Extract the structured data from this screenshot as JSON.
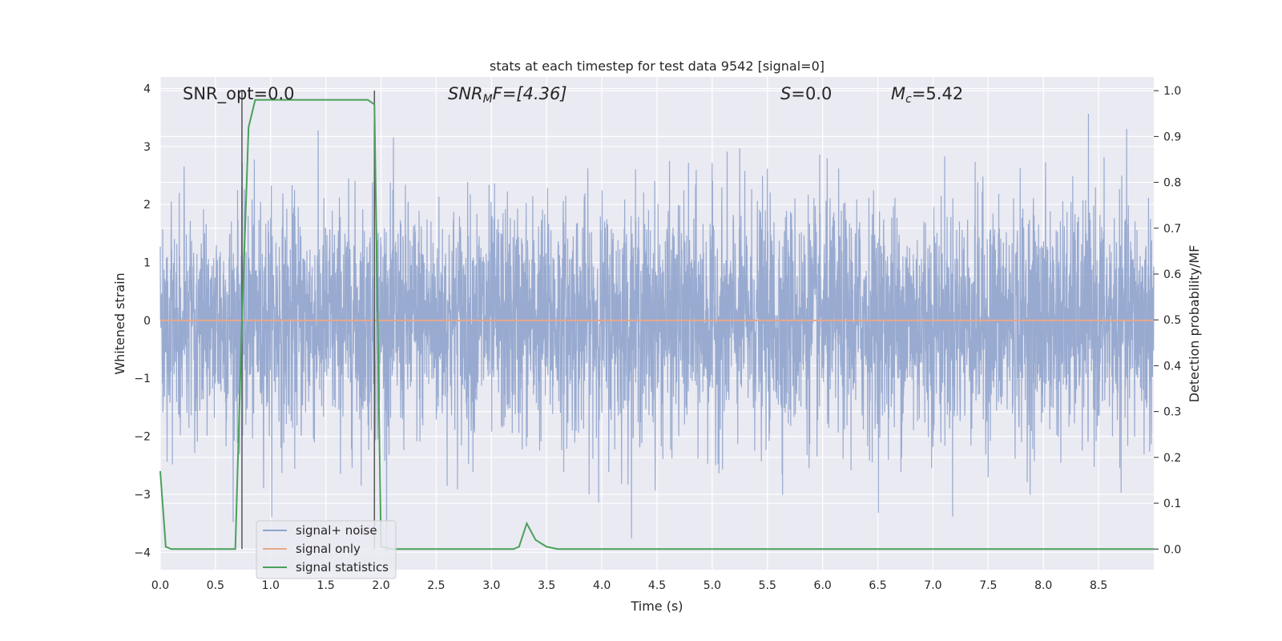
{
  "chart_data": {
    "type": "line",
    "title": "stats at each timestep for test data 9542 [signal=0]",
    "xlabel": "Time (s)",
    "ylabel_left": "Whitened strain",
    "ylabel_right": "Detection probability/MF",
    "xlim": [
      0.0,
      9.0
    ],
    "ylim_left": [
      -4.3,
      4.2
    ],
    "ylim_right": [
      -0.045,
      1.03
    ],
    "xticks": [
      "0.0",
      "0.5",
      "1.0",
      "1.5",
      "2.0",
      "2.5",
      "3.0",
      "3.5",
      "4.0",
      "4.5",
      "5.0",
      "5.5",
      "6.0",
      "6.5",
      "7.0",
      "7.5",
      "8.0",
      "8.5"
    ],
    "yticks_left": [
      "−4",
      "−3",
      "−2",
      "−1",
      "0",
      "1",
      "2",
      "3",
      "4"
    ],
    "yticks_right": [
      "0.0",
      "0.1",
      "0.2",
      "0.3",
      "0.4",
      "0.5",
      "0.6",
      "0.7",
      "0.8",
      "0.9",
      "1.0"
    ],
    "grid": true,
    "legend_position": "lower-left",
    "annotations": {
      "snr_opt": "SNR_opt=0.0",
      "snr_mf_main": "SNR",
      "snr_mf_sub": "M",
      "snr_mf_rest": "F=[4.36]",
      "s_italic": "S",
      "s_rest": "=0.0",
      "mc_main": "M",
      "mc_sub": "c",
      "mc_rest": "=5.42"
    },
    "vertical_lines_x": [
      0.74,
      1.94
    ],
    "series": [
      {
        "name": "signal+ noise",
        "color": "#8fa3cc",
        "axis": "left",
        "kind": "noise",
        "mean": 0.0,
        "std": 1.0,
        "range_approx": [
          -4.0,
          3.9
        ]
      },
      {
        "name": "signal only",
        "color": "#e8a88a",
        "axis": "left",
        "x": [
          0.0,
          9.0
        ],
        "y": [
          0.0,
          0.0
        ]
      },
      {
        "name": "signal statistics",
        "color": "#4aa05a",
        "axis": "right",
        "x": [
          0.0,
          0.05,
          0.1,
          0.68,
          0.74,
          0.8,
          0.86,
          1.3,
          1.6,
          1.8,
          1.88,
          1.94,
          2.0,
          2.1,
          3.2,
          3.25,
          3.32,
          3.4,
          3.5,
          3.6,
          9.0
        ],
        "y": [
          0.17,
          0.005,
          0.0,
          0.0,
          0.5,
          0.92,
          0.98,
          0.98,
          0.98,
          0.98,
          0.98,
          0.97,
          0.005,
          0.0,
          0.0,
          0.005,
          0.056,
          0.02,
          0.005,
          0.0,
          0.0
        ]
      }
    ]
  }
}
